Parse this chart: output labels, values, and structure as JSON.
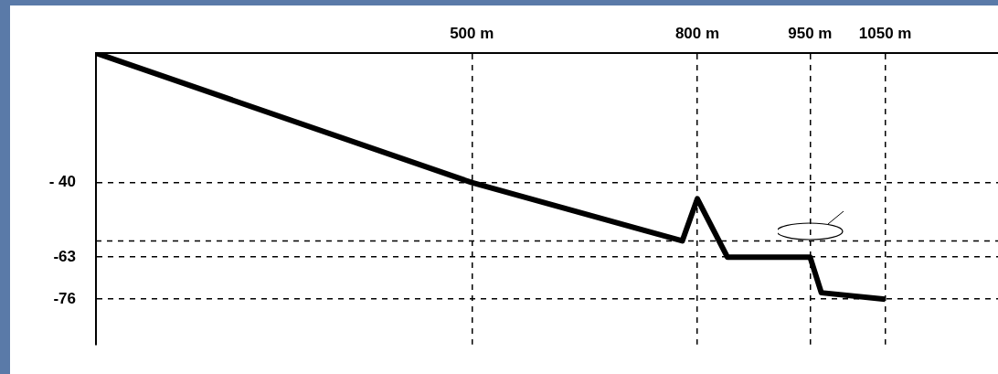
{
  "chart_data": {
    "type": "line",
    "x": [
      0,
      500,
      780,
      800,
      840,
      950,
      965,
      1050
    ],
    "series": [
      {
        "color": "#000000",
        "values": [
          0,
          -40,
          -58,
          -45,
          -63,
          -63,
          -74,
          -76
        ]
      }
    ],
    "xlim": [
      0,
      1200
    ],
    "xticks": [
      {
        "value": 500,
        "label": "500 m"
      },
      {
        "value": 800,
        "label": "800 m"
      },
      {
        "value": 950,
        "label": "950 m"
      },
      {
        "value": 1050,
        "label": "1050 m"
      }
    ],
    "ylim": [
      -90,
      0
    ],
    "yticks": [
      {
        "value": -40,
        "label": "- 40"
      },
      {
        "value": -63,
        "label": "-63"
      },
      {
        "value": -76,
        "label": "-76"
      }
    ],
    "grid": true,
    "line_style": "solid",
    "marker": "none",
    "ref_lines": [
      {
        "axis": "y",
        "value": -58,
        "line_style": "dashed"
      }
    ]
  }
}
